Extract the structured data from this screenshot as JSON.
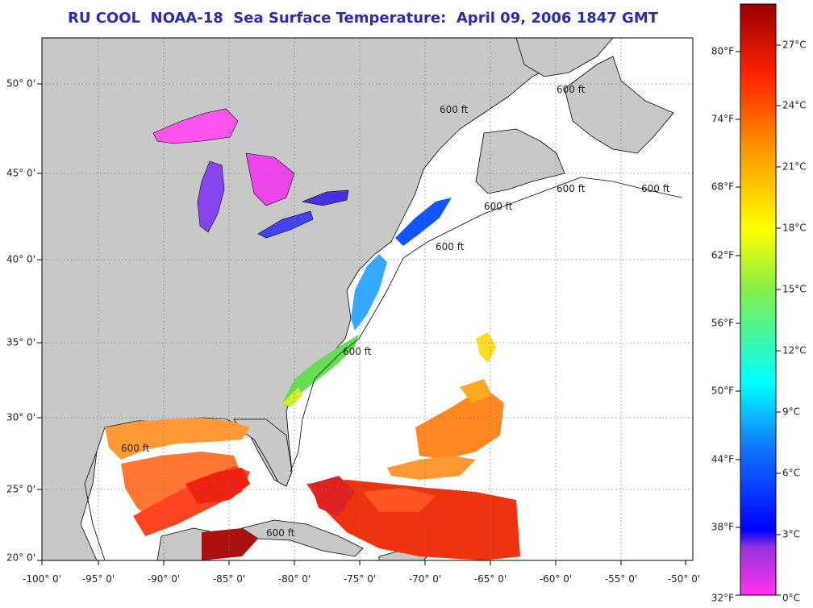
{
  "title": "RU COOL  NOAA-18  Sea Surface Temperature:  April 09, 2006 1847 GMT",
  "map": {
    "lon_labels": [
      "-100° 0'",
      "-95° 0'",
      "-90° 0'",
      "-85° 0'",
      "-80° 0'",
      "-75° 0'",
      "-70° 0'",
      "-65° 0'",
      "-60° 0'",
      "-55° 0'",
      "-50° 0'"
    ],
    "lat_labels": [
      "50° 0'",
      "45° 0'",
      "40° 0'",
      "35° 0'",
      "30° 0'",
      "25° 0'",
      "20° 0'"
    ],
    "contour_labels": [
      "600 ft",
      "600 ft",
      "600 ft",
      "600 ft",
      "600 ft",
      "600 ft",
      "600 ft",
      "600 ft",
      "600 ft"
    ],
    "colors": {
      "land": "#c8c8c8",
      "ocean_no_data": "#ffffff",
      "grid": "#777777"
    }
  },
  "colorbar": {
    "fahrenheit_labels": [
      "80°F",
      "74°F",
      "68°F",
      "62°F",
      "56°F",
      "50°F",
      "44°F",
      "38°F",
      "32°F"
    ],
    "celsius_labels": [
      "27°C",
      "24°C",
      "21°C",
      "18°C",
      "15°C",
      "12°C",
      "9°C",
      "6°C",
      "3°C",
      "0°C"
    ],
    "gradient_colors": [
      "#ff33ee",
      "#8833dd",
      "#0000ff",
      "#00aaff",
      "#00ffff",
      "#88ee44",
      "#ffff00",
      "#ff9900",
      "#ff2200",
      "#990000"
    ]
  }
}
